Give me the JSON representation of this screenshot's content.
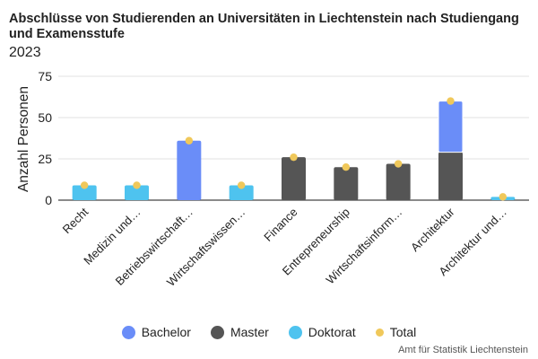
{
  "chart_data": {
    "type": "bar",
    "stacked": true,
    "title": "Abschlüsse von Studierenden an Universitäten in Liechtenstein nach Studiengang und Examensstufe",
    "subtitle": "2023",
    "xlabel": "",
    "ylabel": "Anzahl Personen",
    "ylim": [
      0,
      75
    ],
    "yticks": [
      0,
      25,
      50,
      75
    ],
    "grid": true,
    "legend_position": "bottom",
    "categories": [
      "Recht",
      "Medizin und…",
      "Betriebswirtschaft…",
      "Wirtschaftswissen…",
      "Finance",
      "Entrepreneurship",
      "Wirtschaftsinform…",
      "Architektur",
      "Architektur und…"
    ],
    "series": [
      {
        "name": "Doktorat",
        "color": "#4ec3ef",
        "values": [
          9,
          9,
          0,
          9,
          0,
          0,
          0,
          0,
          2
        ]
      },
      {
        "name": "Master",
        "color": "#555555",
        "values": [
          0,
          0,
          0,
          0,
          26,
          20,
          22,
          29,
          0
        ]
      },
      {
        "name": "Bachelor",
        "color": "#6a8df8",
        "values": [
          0,
          0,
          36,
          0,
          0,
          0,
          0,
          31,
          0
        ]
      }
    ],
    "total": {
      "name": "Total",
      "color": "#f0c85a",
      "values": [
        9,
        9,
        36,
        9,
        26,
        20,
        22,
        60,
        2
      ]
    },
    "legend": [
      {
        "name": "Bachelor",
        "color": "#6a8df8"
      },
      {
        "name": "Master",
        "color": "#555555"
      },
      {
        "name": "Doktorat",
        "color": "#4ec3ef"
      },
      {
        "name": "Total",
        "color": "#f0c85a"
      }
    ]
  },
  "source": "Amt für Statistik Liechtenstein"
}
